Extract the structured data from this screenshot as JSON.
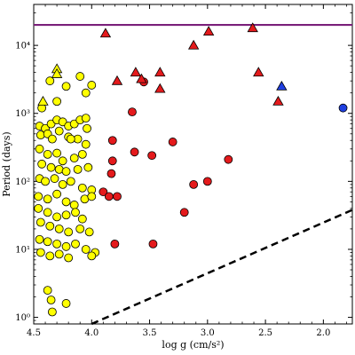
{
  "chart_data": {
    "type": "scatter",
    "xlabel": "log g (cm/s²)",
    "ylabel": "Period (days)",
    "x_axis": {
      "min": 1.75,
      "max": 4.5,
      "reversed": true,
      "ticks": [
        4.5,
        4.0,
        3.5,
        3.0,
        2.5,
        2.0
      ],
      "tick_labels": [
        "4.5",
        "4.0",
        "3.5",
        "3.0",
        "2.5",
        "2.0"
      ]
    },
    "y_axis": {
      "scale": "log",
      "min": 0.8,
      "max": 40000,
      "ticks": [
        1,
        10,
        100,
        1000,
        10000
      ],
      "tick_labels": [
        "10⁰",
        "10¹",
        "10²",
        "10³",
        "10⁴"
      ]
    },
    "grid": false,
    "colors": {
      "yellow": "#ffff00",
      "red": "#e41a1c",
      "blue": "#1f3fe0",
      "hline": "#7a1f7a",
      "dashed": "#000000"
    },
    "hline": {
      "y": 20000
    },
    "dashed_line": {
      "x1": 4.0,
      "y1": 0.8,
      "x2": 1.75,
      "y2": 38
    },
    "series": [
      {
        "color_key": "yellow",
        "marker": "circle",
        "points": [
          [
            4.43,
            1200
          ],
          [
            4.45,
            650
          ],
          [
            4.4,
            600
          ],
          [
            4.35,
            700
          ],
          [
            4.3,
            800
          ],
          [
            4.25,
            750
          ],
          [
            4.2,
            650
          ],
          [
            4.15,
            700
          ],
          [
            4.1,
            800
          ],
          [
            4.05,
            850
          ],
          [
            4.44,
            480
          ],
          [
            4.38,
            500
          ],
          [
            4.34,
            420
          ],
          [
            4.28,
            550
          ],
          [
            4.2,
            450
          ],
          [
            4.12,
            420
          ],
          [
            4.05,
            350
          ],
          [
            4.45,
            300
          ],
          [
            4.38,
            250
          ],
          [
            4.3,
            260
          ],
          [
            4.25,
            200
          ],
          [
            4.15,
            220
          ],
          [
            4.08,
            250
          ],
          [
            4.43,
            180
          ],
          [
            4.35,
            160
          ],
          [
            4.28,
            150
          ],
          [
            4.22,
            140
          ],
          [
            4.12,
            150
          ],
          [
            4.03,
            160
          ],
          [
            4.45,
            110
          ],
          [
            4.4,
            100
          ],
          [
            4.32,
            110
          ],
          [
            4.25,
            90
          ],
          [
            4.18,
            100
          ],
          [
            4.08,
            80
          ],
          [
            4.0,
            75
          ],
          [
            4.46,
            60
          ],
          [
            4.38,
            55
          ],
          [
            4.3,
            65
          ],
          [
            4.22,
            50
          ],
          [
            4.15,
            45
          ],
          [
            4.06,
            55
          ],
          [
            4.0,
            60
          ],
          [
            4.46,
            40
          ],
          [
            4.38,
            35
          ],
          [
            4.3,
            30
          ],
          [
            4.22,
            32
          ],
          [
            4.14,
            35
          ],
          [
            4.08,
            28
          ],
          [
            4.44,
            25
          ],
          [
            4.36,
            22
          ],
          [
            4.28,
            20
          ],
          [
            4.2,
            18
          ],
          [
            4.1,
            20
          ],
          [
            4.02,
            18
          ],
          [
            4.45,
            14
          ],
          [
            4.38,
            13
          ],
          [
            4.3,
            12
          ],
          [
            4.22,
            11
          ],
          [
            4.14,
            12
          ],
          [
            4.05,
            10
          ],
          [
            3.97,
            9
          ],
          [
            4.44,
            9
          ],
          [
            4.36,
            8
          ],
          [
            4.28,
            8.5
          ],
          [
            4.2,
            7.5
          ],
          [
            4.0,
            8
          ],
          [
            4.38,
            2.5
          ],
          [
            4.35,
            1.8
          ],
          [
            4.34,
            1.2
          ],
          [
            4.22,
            1.6
          ],
          [
            4.22,
            2500
          ],
          [
            4.3,
            1500
          ],
          [
            4.1,
            3500
          ],
          [
            4.05,
            2000
          ],
          [
            4.0,
            2600
          ],
          [
            4.04,
            600
          ],
          [
            4.18,
            420
          ],
          [
            4.36,
            3000
          ]
        ]
      },
      {
        "color_key": "yellow",
        "marker": "triangle",
        "points": [
          [
            4.42,
            1500
          ],
          [
            4.3,
            4500
          ],
          [
            4.3,
            3800
          ]
        ]
      },
      {
        "color_key": "red",
        "marker": "circle",
        "points": [
          [
            3.55,
            2900
          ],
          [
            3.65,
            1050
          ],
          [
            3.82,
            400
          ],
          [
            3.82,
            200
          ],
          [
            3.83,
            130
          ],
          [
            3.63,
            270
          ],
          [
            3.48,
            240
          ],
          [
            3.3,
            380
          ],
          [
            3.9,
            70
          ],
          [
            3.85,
            60
          ],
          [
            3.78,
            60
          ],
          [
            3.47,
            12
          ],
          [
            3.8,
            12
          ],
          [
            3.2,
            35
          ],
          [
            3.12,
            90
          ],
          [
            3.0,
            100
          ],
          [
            2.82,
            210
          ]
        ]
      },
      {
        "color_key": "red",
        "marker": "triangle",
        "points": [
          [
            3.88,
            15000
          ],
          [
            3.78,
            3000
          ],
          [
            3.62,
            4000
          ],
          [
            3.57,
            3200
          ],
          [
            3.41,
            4000
          ],
          [
            3.41,
            2300
          ],
          [
            3.12,
            10000
          ],
          [
            2.99,
            16000
          ],
          [
            2.61,
            18000
          ],
          [
            2.56,
            4000
          ],
          [
            2.39,
            1500
          ]
        ]
      },
      {
        "color_key": "blue",
        "marker": "triangle",
        "points": [
          [
            2.36,
            2500
          ]
        ]
      },
      {
        "color_key": "blue",
        "marker": "circle",
        "points": [
          [
            1.83,
            1200
          ]
        ]
      }
    ]
  }
}
